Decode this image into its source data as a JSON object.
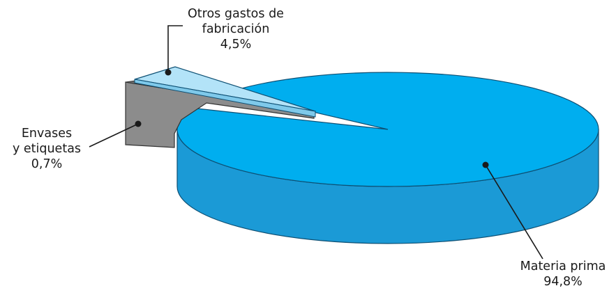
{
  "chart_data": {
    "type": "pie",
    "style": "3d exploded",
    "title": "",
    "slices": [
      {
        "label_lines": [
          "Materia prima"
        ],
        "value_label": "94,8%",
        "value": 94.8,
        "color": "#00aeef"
      },
      {
        "label_lines": [
          "Otros gastos de",
          "fabricación"
        ],
        "value_label": "4,5%",
        "value": 4.5,
        "color": "#b3e3f8"
      },
      {
        "label_lines": [
          "Envases",
          "y etiquetas"
        ],
        "value_label": "0,7%",
        "value": 0.7,
        "color": "#8c8c8c"
      }
    ]
  }
}
